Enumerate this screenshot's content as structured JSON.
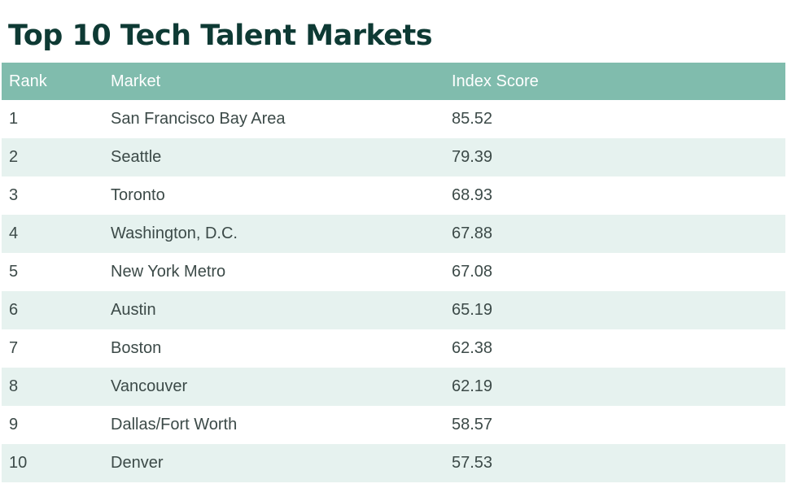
{
  "title": "Top 10 Tech Talent Markets",
  "colors": {
    "title": "#0e3a34",
    "header_bg": "#80bcad",
    "row_alt_bg": "#e6f2ef",
    "text": "#3c4a48"
  },
  "chart_data": {
    "type": "table",
    "title": "Top 10 Tech Talent Markets",
    "columns": [
      "Rank",
      "Market",
      "Index Score"
    ],
    "rows": [
      [
        "1",
        "San Francisco Bay Area",
        "85.52"
      ],
      [
        "2",
        "Seattle",
        "79.39"
      ],
      [
        "3",
        "Toronto",
        "68.93"
      ],
      [
        "4",
        "Washington, D.C.",
        "67.88"
      ],
      [
        "5",
        "New York Metro",
        "67.08"
      ],
      [
        "6",
        "Austin",
        "65.19"
      ],
      [
        "7",
        "Boston",
        "62.38"
      ],
      [
        "8",
        "Vancouver",
        "62.19"
      ],
      [
        "9",
        "Dallas/Fort Worth",
        "58.57"
      ],
      [
        "10",
        "Denver",
        "57.53"
      ]
    ]
  }
}
